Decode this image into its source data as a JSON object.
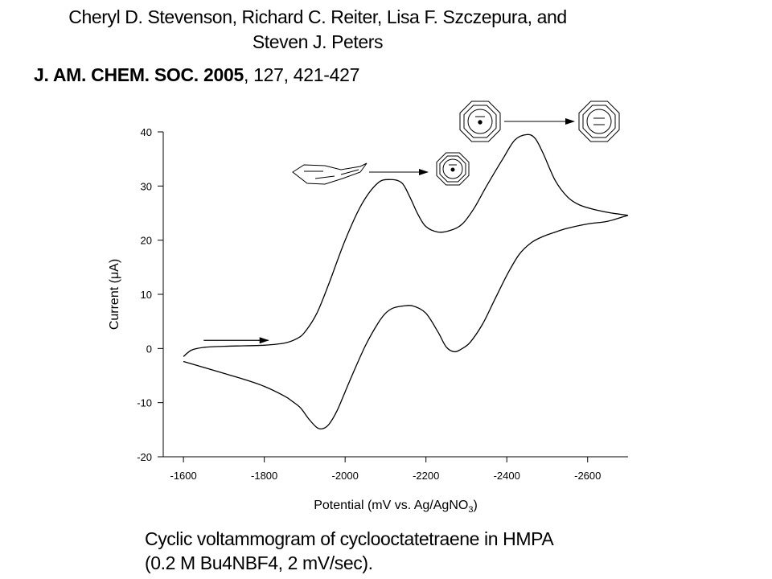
{
  "header": {
    "authors_line1": "Cheryl D. Stevenson, Richard C. Reiter, Lisa F. Szczepura, and",
    "authors_line2": "Steven J. Peters",
    "journal": "J. AM. CHEM. SOC. 2005",
    "volume_pages": ", 127, 421-427"
  },
  "caption": {
    "line1": "Cyclic voltammogram of cyclooctatetraene in HMPA",
    "line2": "(0.2 M Bu4NBF4, 2 mV/sec)."
  },
  "chart_data": {
    "type": "line",
    "xlabel": "Potential (mV vs. Ag/AgNO",
    "xlabel_subscript": "3",
    "xlabel_suffix": ")",
    "ylabel": "Current (μA)",
    "xlim": [
      -1550,
      -2700
    ],
    "ylim": [
      -20,
      40
    ],
    "x_reversed": true,
    "grid": false,
    "x_ticks": [
      -1600,
      -1800,
      -2000,
      -2200,
      -2400,
      -2600
    ],
    "y_ticks": [
      -20,
      -10,
      0,
      10,
      20,
      30,
      40
    ],
    "series": [
      {
        "x": [
          -1600,
          -1620,
          -1650,
          -1700,
          -1750,
          -1800,
          -1850,
          -1880,
          -1900,
          -1930,
          -1960,
          -2000,
          -2040,
          -2080,
          -2110,
          -2140,
          -2160,
          -2180,
          -2200,
          -2230,
          -2260,
          -2290,
          -2320,
          -2350,
          -2390,
          -2420,
          -2450,
          -2470,
          -2490,
          -2520,
          -2550,
          -2580,
          -2620,
          -2660,
          -2700
        ],
        "y": [
          -1.5,
          -0.3,
          0.2,
          0.4,
          0.5,
          0.6,
          1.0,
          1.8,
          3.0,
          6.5,
          12.0,
          20.0,
          26.5,
          30.5,
          31.2,
          30.6,
          28.0,
          24.8,
          22.5,
          21.5,
          21.8,
          23.0,
          26.0,
          30.0,
          35.0,
          38.5,
          39.5,
          38.8,
          36.0,
          31.0,
          28.0,
          26.5,
          25.6,
          25.0,
          24.6
        ]
      },
      {
        "x": [
          -2700,
          -2650,
          -2600,
          -2550,
          -2520,
          -2490,
          -2460,
          -2430,
          -2400,
          -2370,
          -2340,
          -2310,
          -2290,
          -2270,
          -2250,
          -2230,
          -2200,
          -2170,
          -2150,
          -2120,
          -2100,
          -2080,
          -2050,
          -2020,
          -2000,
          -1980,
          -1960,
          -1945,
          -1930,
          -1910,
          -1890,
          -1870,
          -1850,
          -1800,
          -1750,
          -1700,
          -1650,
          -1600
        ],
        "y": [
          24.6,
          23.5,
          23.0,
          22.2,
          21.5,
          20.7,
          19.5,
          17.3,
          13.5,
          9.0,
          4.5,
          1.2,
          0.0,
          -0.6,
          0.3,
          3.0,
          6.5,
          7.8,
          7.9,
          7.5,
          6.5,
          4.5,
          0.5,
          -4.5,
          -8.0,
          -11.5,
          -14.0,
          -14.8,
          -14.6,
          -13.0,
          -11.0,
          -9.8,
          -8.8,
          -7.0,
          -5.7,
          -4.6,
          -3.5,
          -2.4
        ]
      }
    ],
    "annotations": [
      {
        "type": "arrow",
        "from": [
          -1650,
          1.5
        ],
        "to": [
          -1810,
          1.5
        ]
      }
    ]
  }
}
